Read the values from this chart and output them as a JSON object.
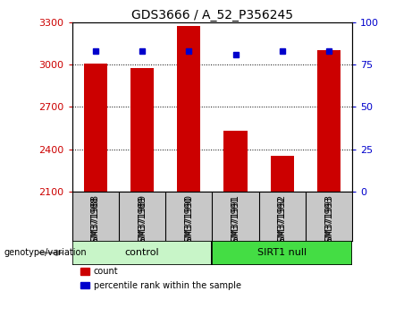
{
  "title": "GDS3666 / A_52_P356245",
  "samples": [
    "GSM371988",
    "GSM371989",
    "GSM371990",
    "GSM371991",
    "GSM371992",
    "GSM371993"
  ],
  "counts": [
    3005,
    2975,
    3275,
    2530,
    2355,
    3105
  ],
  "percentiles": [
    83,
    83,
    83,
    81,
    83,
    83
  ],
  "ylim_left": [
    2100,
    3300
  ],
  "ylim_right": [
    0,
    100
  ],
  "yticks_left": [
    2100,
    2400,
    2700,
    3000,
    3300
  ],
  "yticks_right": [
    0,
    25,
    50,
    75,
    100
  ],
  "bar_color": "#cc0000",
  "dot_color": "#0000cc",
  "groups": [
    {
      "label": "control",
      "span": [
        0,
        3
      ]
    },
    {
      "label": "SIRT1 null",
      "span": [
        3,
        6
      ]
    }
  ],
  "genotype_label": "genotype/variation",
  "legend_items": [
    {
      "label": "count",
      "color": "#cc0000"
    },
    {
      "label": "percentile rank within the sample",
      "color": "#0000cc"
    }
  ],
  "tick_label_color_left": "#cc0000",
  "tick_label_color_right": "#0000cc",
  "xlabel_area_bg": "#c8c8c8",
  "group_area_bg_control": "#c8f5c8",
  "group_area_bg_sirt1": "#44dd44"
}
